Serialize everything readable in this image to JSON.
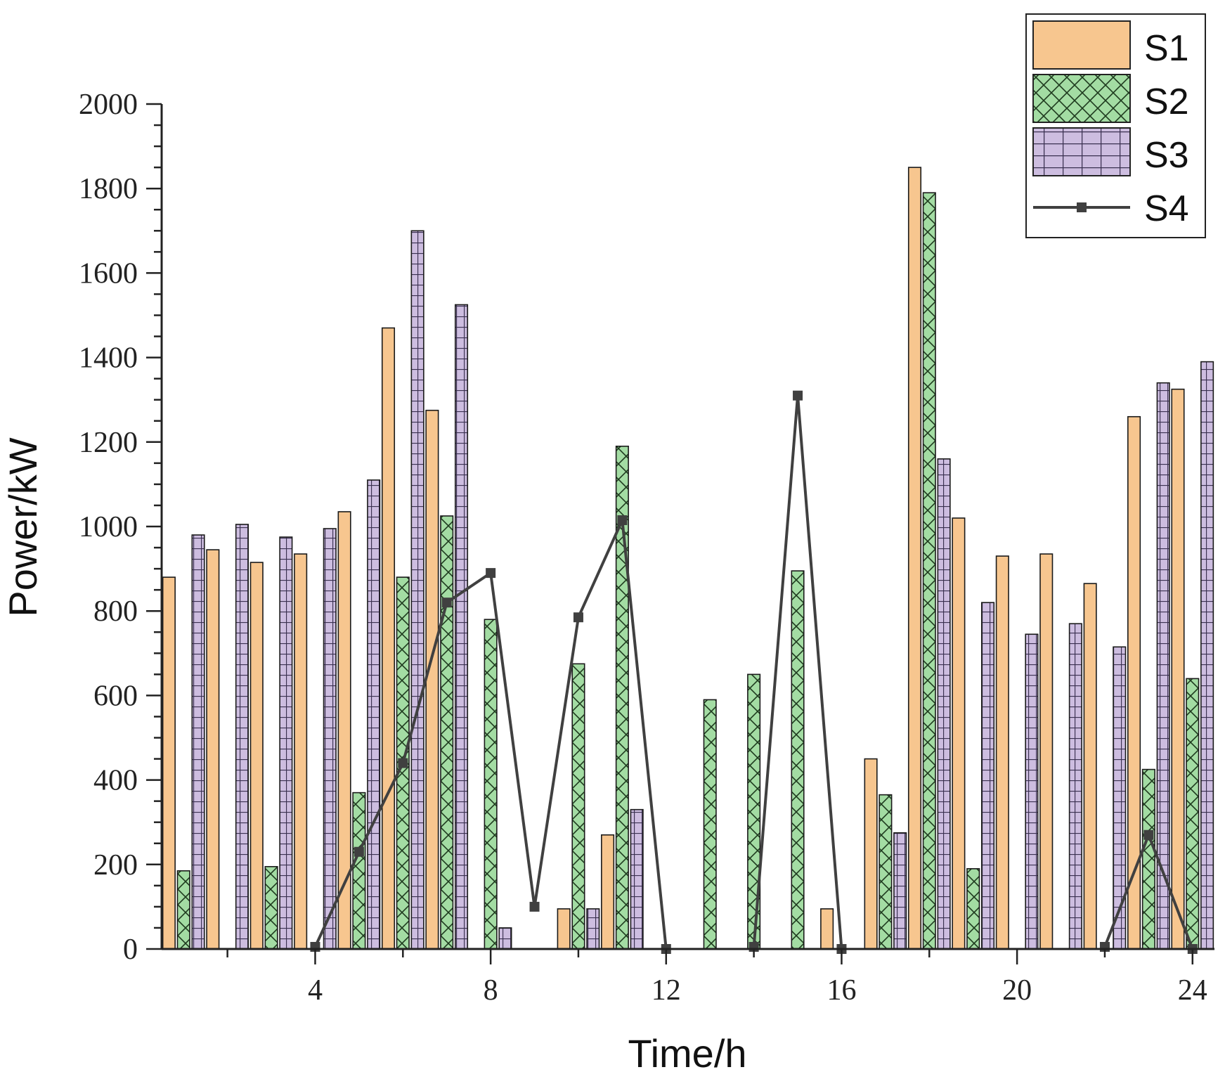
{
  "chart_data": {
    "type": "bar",
    "title": "",
    "xlabel": "Time/h",
    "ylabel": "Power/kW",
    "ylim": [
      0,
      2000
    ],
    "xlim": [
      0.5,
      24.5
    ],
    "y_ticks": [
      0,
      200,
      400,
      600,
      800,
      1000,
      1200,
      1400,
      1600,
      1800,
      2000
    ],
    "x_ticks": [
      4,
      8,
      12,
      16,
      20,
      24
    ],
    "x": [
      1,
      2,
      3,
      4,
      5,
      6,
      7,
      8,
      9,
      10,
      11,
      12,
      13,
      14,
      15,
      16,
      17,
      18,
      19,
      20,
      21,
      22,
      23,
      24
    ],
    "legend_position": "top-right",
    "series": [
      {
        "name": "S1",
        "kind": "bar",
        "color": "#F7C68F",
        "pattern": "none",
        "values": [
          880,
          945,
          915,
          935,
          1035,
          1470,
          1275,
          0,
          0,
          95,
          270,
          0,
          0,
          0,
          0,
          95,
          450,
          1850,
          1020,
          930,
          935,
          865,
          1260,
          1325
        ]
      },
      {
        "name": "S2",
        "kind": "bar",
        "color": "#A3DCA3",
        "pattern": "crosshatch",
        "values": [
          185,
          0,
          195,
          0,
          370,
          880,
          1025,
          780,
          0,
          675,
          1190,
          0,
          590,
          650,
          895,
          0,
          365,
          1790,
          190,
          0,
          0,
          0,
          425,
          640
        ]
      },
      {
        "name": "S3",
        "kind": "bar",
        "color": "#CDBDE0",
        "pattern": "grid",
        "values": [
          980,
          1005,
          975,
          995,
          1110,
          1700,
          1525,
          50,
          0,
          95,
          330,
          0,
          0,
          0,
          0,
          0,
          275,
          1160,
          820,
          745,
          770,
          715,
          1340,
          1390
        ]
      },
      {
        "name": "S4",
        "kind": "line",
        "color": "#404040",
        "marker": "square",
        "values": [
          null,
          null,
          null,
          5,
          230,
          440,
          820,
          890,
          100,
          785,
          1015,
          0,
          null,
          5,
          1310,
          0,
          null,
          null,
          null,
          null,
          null,
          5,
          270,
          0
        ]
      }
    ]
  }
}
